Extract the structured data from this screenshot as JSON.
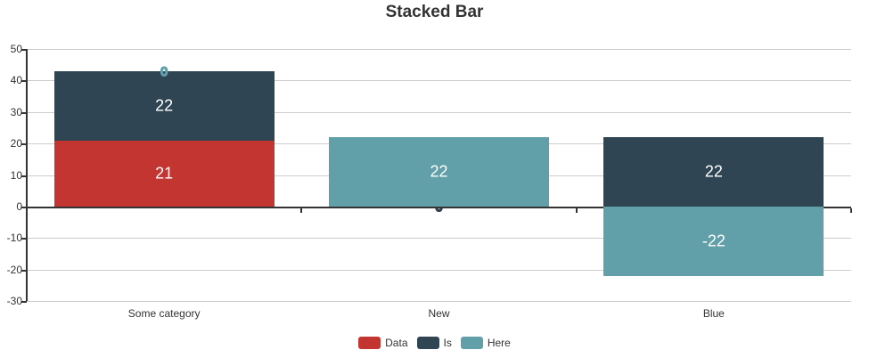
{
  "title": {
    "text": "Stacked Bar"
  },
  "colors": {
    "background": "#ffffff",
    "title": "#333333",
    "axis": "#333333",
    "grid": "#cccccc",
    "tick_label": "#333333",
    "bar_label": "#ffffff"
  },
  "chart_data": {
    "type": "bar",
    "stacked": true,
    "title": "Stacked Bar",
    "categories": [
      "Some category",
      "New",
      "Blue"
    ],
    "series": [
      {
        "name": "Data",
        "color": "#c23531",
        "values": [
          21,
          0,
          0
        ]
      },
      {
        "name": "Is",
        "color": "#2f4554",
        "values": [
          22,
          0,
          22
        ]
      },
      {
        "name": "Here",
        "color": "#61a0a8",
        "values": [
          0,
          22,
          -22
        ]
      }
    ],
    "ylim": [
      -30,
      50
    ],
    "y_ticks": [
      50,
      40,
      30,
      20,
      10,
      0,
      -10,
      -20,
      -30
    ],
    "xlabel": "",
    "ylabel": "",
    "grid": true,
    "legend_position": "bottom",
    "bar_value_labels": true,
    "zero_value_label": "0"
  }
}
